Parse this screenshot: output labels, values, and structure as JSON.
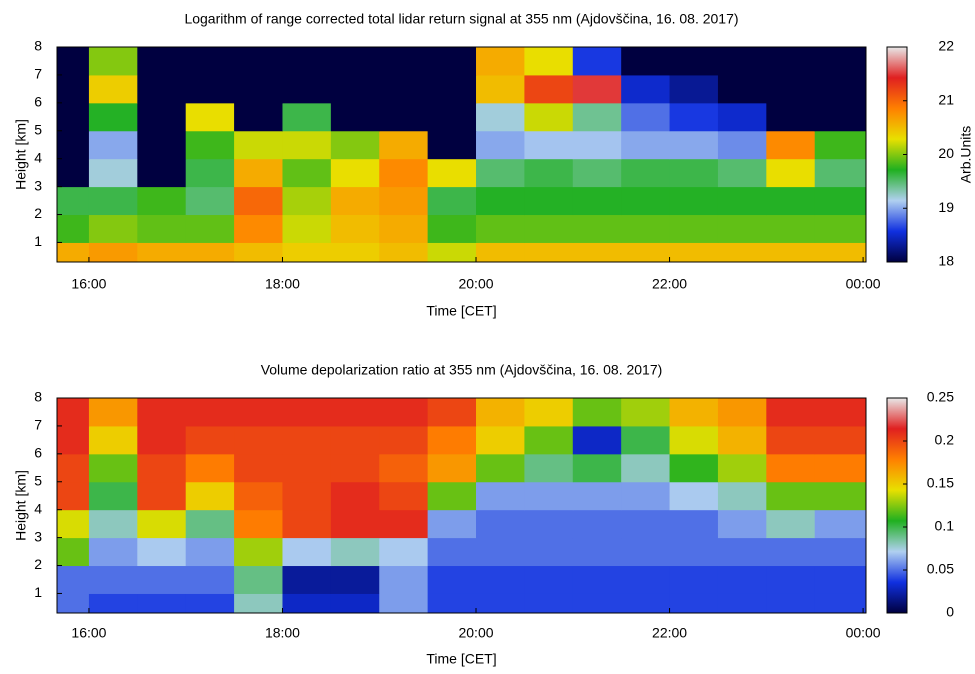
{
  "chart_data": [
    {
      "type": "heatmap",
      "title": "Logarithm of range corrected total lidar return signal at 355 nm (Ajdovščina, 16. 08. 2017)",
      "x_label": "Time [CET]",
      "y_label": "Height [km]",
      "colorbar_label": "Arb.Units",
      "x": [
        15.75,
        16.25,
        16.75,
        17.25,
        17.75,
        18.25,
        18.75,
        19.25,
        19.75,
        20.25,
        20.75,
        21.25,
        21.75,
        22.25,
        22.75,
        23.25,
        23.75
      ],
      "y": [
        0.5,
        1.5,
        2.5,
        3.5,
        4.5,
        5.5,
        6.5,
        7.5
      ],
      "z": [
        [
          20.6,
          20.7,
          20.6,
          20.6,
          20.5,
          20.4,
          20.4,
          20.5,
          20.2,
          20.5,
          20.5,
          20.5,
          20.5,
          20.5,
          20.5,
          20.5,
          20.5
        ],
        [
          19.8,
          20.0,
          19.9,
          19.9,
          20.8,
          20.2,
          20.5,
          20.6,
          19.8,
          19.9,
          19.9,
          19.9,
          19.9,
          19.9,
          19.9,
          19.9,
          19.9
        ],
        [
          19.6,
          19.6,
          19.8,
          19.5,
          21.0,
          20.1,
          20.6,
          20.7,
          19.6,
          19.7,
          19.7,
          19.7,
          19.7,
          19.7,
          19.7,
          19.7,
          19.7
        ],
        [
          18.0,
          19.2,
          18.0,
          19.6,
          20.6,
          19.9,
          20.3,
          20.8,
          20.3,
          19.5,
          19.6,
          19.5,
          19.6,
          19.6,
          19.5,
          20.3,
          19.5
        ],
        [
          18.0,
          19.0,
          18.0,
          19.8,
          20.2,
          20.2,
          20.0,
          20.6,
          18.0,
          19.0,
          19.1,
          19.1,
          19.0,
          19.0,
          18.9,
          20.8,
          19.8
        ],
        [
          18.0,
          19.7,
          18.0,
          20.3,
          18.0,
          19.6,
          18.0,
          18.0,
          18.0,
          19.2,
          20.2,
          19.4,
          18.8,
          18.6,
          18.5,
          18.0,
          18.0
        ],
        [
          18.0,
          20.4,
          18.0,
          18.0,
          18.0,
          18.0,
          18.0,
          18.0,
          18.0,
          20.5,
          21.2,
          21.5,
          18.5,
          18.3,
          18.0,
          18.0,
          18.0
        ],
        [
          18.0,
          20.0,
          18.0,
          18.0,
          18.0,
          18.0,
          18.0,
          18.0,
          18.0,
          20.6,
          20.3,
          18.6,
          18.0,
          18.0,
          18.0,
          18.0,
          18.0
        ]
      ],
      "xlim": [
        15.67,
        24.03
      ],
      "ylim": [
        0.3,
        8
      ],
      "zlim": [
        18,
        22
      ],
      "xticks": [
        {
          "value": 16,
          "label": "16:00"
        },
        {
          "value": 18,
          "label": "18:00"
        },
        {
          "value": 20,
          "label": "20:00"
        },
        {
          "value": 22,
          "label": "22:00"
        },
        {
          "value": 24,
          "label": "00:00"
        }
      ],
      "yticks": [
        1,
        2,
        3,
        4,
        5,
        6,
        7,
        8
      ],
      "zticks": [
        18,
        19,
        20,
        21,
        22
      ],
      "colorscale": [
        "#000040",
        "#1030e0",
        "#b0d0f0",
        "#20b020",
        "#e8e000",
        "#ff8000",
        "#e02020",
        "#e8e8e8"
      ]
    },
    {
      "type": "heatmap",
      "title": "Volume depolarization ratio at 355 nm (Ajdovščina, 16. 08. 2017)",
      "x_label": "Time [CET]",
      "y_label": "Height [km]",
      "x": [
        15.75,
        16.25,
        16.75,
        17.25,
        17.75,
        18.25,
        18.75,
        19.25,
        19.75,
        20.25,
        20.75,
        21.25,
        21.75,
        22.25,
        22.75,
        23.25,
        23.75
      ],
      "y": [
        0.5,
        1.5,
        2.5,
        3.5,
        4.5,
        5.5,
        6.5,
        7.5
      ],
      "z": [
        [
          0.05,
          0.04,
          0.04,
          0.04,
          0.08,
          0.03,
          0.03,
          0.06,
          0.04,
          0.04,
          0.04,
          0.04,
          0.04,
          0.04,
          0.04,
          0.04,
          0.04
        ],
        [
          0.05,
          0.05,
          0.05,
          0.05,
          0.09,
          0.02,
          0.02,
          0.06,
          0.04,
          0.04,
          0.04,
          0.04,
          0.04,
          0.04,
          0.04,
          0.04,
          0.04
        ],
        [
          0.12,
          0.06,
          0.07,
          0.06,
          0.13,
          0.07,
          0.08,
          0.07,
          0.05,
          0.05,
          0.05,
          0.05,
          0.05,
          0.05,
          0.05,
          0.05,
          0.05
        ],
        [
          0.14,
          0.08,
          0.14,
          0.09,
          0.18,
          0.2,
          0.21,
          0.21,
          0.06,
          0.05,
          0.05,
          0.05,
          0.05,
          0.05,
          0.06,
          0.08,
          0.06
        ],
        [
          0.2,
          0.1,
          0.2,
          0.15,
          0.19,
          0.2,
          0.21,
          0.2,
          0.12,
          0.06,
          0.06,
          0.06,
          0.06,
          0.07,
          0.08,
          0.12,
          0.12
        ],
        [
          0.2,
          0.12,
          0.2,
          0.18,
          0.2,
          0.2,
          0.2,
          0.19,
          0.17,
          0.12,
          0.09,
          0.1,
          0.08,
          0.11,
          0.13,
          0.18,
          0.18
        ],
        [
          0.21,
          0.15,
          0.21,
          0.2,
          0.2,
          0.2,
          0.2,
          0.2,
          0.18,
          0.15,
          0.12,
          0.03,
          0.1,
          0.14,
          0.16,
          0.2,
          0.2
        ],
        [
          0.21,
          0.17,
          0.21,
          0.21,
          0.21,
          0.21,
          0.21,
          0.21,
          0.2,
          0.16,
          0.15,
          0.12,
          0.13,
          0.16,
          0.17,
          0.21,
          0.21
        ]
      ],
      "xlim": [
        15.67,
        24.03
      ],
      "ylim": [
        0.3,
        8
      ],
      "zlim": [
        0,
        0.25
      ],
      "xticks": [
        {
          "value": 16,
          "label": "16:00"
        },
        {
          "value": 18,
          "label": "18:00"
        },
        {
          "value": 20,
          "label": "20:00"
        },
        {
          "value": 22,
          "label": "22:00"
        },
        {
          "value": 24,
          "label": "00:00"
        }
      ],
      "yticks": [
        1,
        2,
        3,
        4,
        5,
        6,
        7,
        8
      ],
      "zticks": [
        0,
        0.05,
        0.1,
        0.15,
        0.2,
        0.25
      ],
      "colorscale": [
        "#000040",
        "#1030e0",
        "#b0d0f0",
        "#20b020",
        "#e8e000",
        "#ff8000",
        "#e02020",
        "#e8e8e8"
      ]
    }
  ]
}
